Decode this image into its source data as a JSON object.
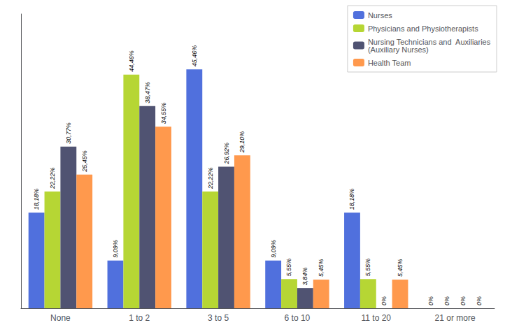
{
  "chart_data": {
    "type": "bar",
    "categories": [
      "None",
      "1 to 2",
      "3 to 5",
      "6 to 10",
      "11 to 20",
      "21 or more"
    ],
    "series": [
      {
        "name": "Nurses",
        "values": [
          18.18,
          9.09,
          45.46,
          9.09,
          18.18,
          0.0
        ],
        "value_labels": [
          "18,18%",
          "9,09%",
          "45,46%",
          "9,09%",
          "18,18%",
          "0%"
        ]
      },
      {
        "name": "Physicians and Physiotherapists",
        "values": [
          22.22,
          44.46,
          22.22,
          5.55,
          5.55,
          0.0
        ],
        "value_labels": [
          "22,22%",
          "44,46%",
          "22,22%",
          "5,55%",
          "5,55%",
          "0%"
        ]
      },
      {
        "name": "Nursing Technicians and  Auxiliaries\n(Auxiliary Nurses)",
        "values": [
          30.77,
          38.47,
          26.92,
          3.84,
          0.0,
          0.0
        ],
        "value_labels": [
          "30,77%",
          "38,47%",
          "26,92%",
          "3,84%",
          "0%",
          "0%"
        ]
      },
      {
        "name": "Health Team",
        "values": [
          25.45,
          34.55,
          29.1,
          5.45,
          5.45,
          0.0
        ],
        "value_labels": [
          "25,45%",
          "34,55%",
          "29,10%",
          "5,45%",
          "5,45%",
          "0%"
        ]
      }
    ],
    "ylim": [
      0,
      56
    ],
    "tick_labels": "x",
    "grid": false,
    "legend": "upper right",
    "data_labels": true
  }
}
